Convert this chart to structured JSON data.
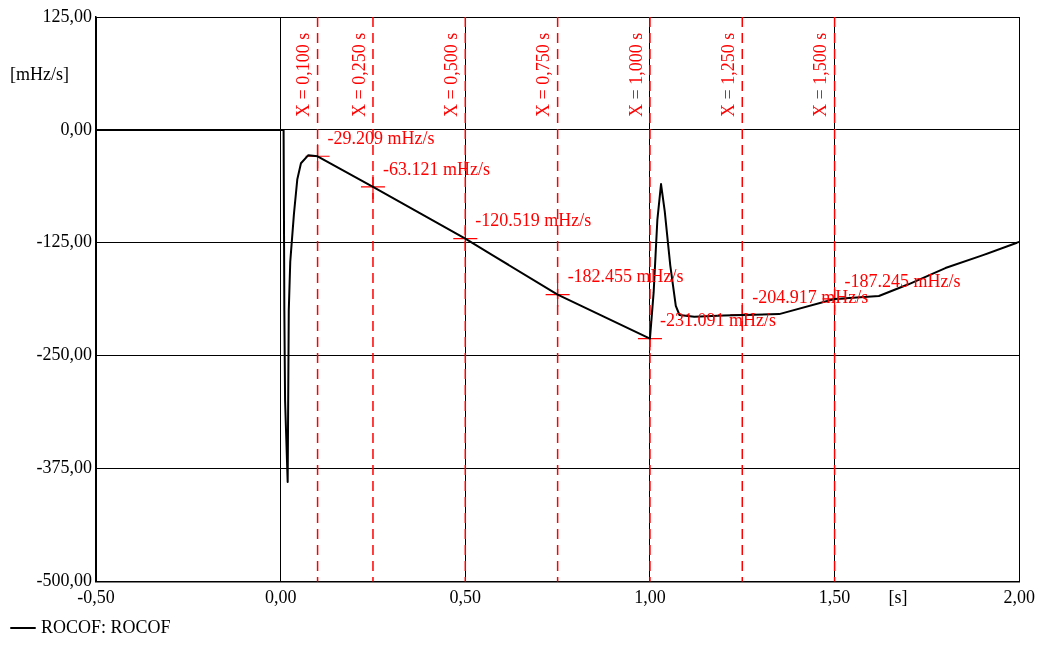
{
  "chart_data": {
    "type": "line",
    "xlabel": "[s]",
    "ylabel": "[mHz/s]",
    "x": [
      -0.5,
      0.008,
      0.01,
      0.012,
      0.019,
      0.022,
      0.026,
      0.036,
      0.045,
      0.055,
      0.075,
      0.1,
      0.25,
      0.5,
      0.75,
      1.0,
      1.01,
      1.02,
      1.03,
      1.04,
      1.055,
      1.07,
      1.08,
      1.12,
      1.2,
      1.25,
      1.35,
      1.5,
      1.62,
      1.7,
      1.8,
      1.9,
      2.0
    ],
    "series": [
      {
        "name": "ROCOF: ROCOF",
        "color": "#000000",
        "values": [
          0,
          0,
          -200,
          -300,
          -390,
          -200,
          -146,
          -93,
          -55,
          -37,
          -28,
          -29.209,
          -63.121,
          -120.519,
          -182.455,
          -231.091,
          -180,
          -100,
          -60,
          -90,
          -150,
          -195,
          -205,
          -207,
          -205.5,
          -204.917,
          -204,
          -187.245,
          -184,
          -171,
          -153,
          -139,
          -124
        ]
      }
    ],
    "xlim": [
      -0.5,
      2.0
    ],
    "xticks": [
      {
        "value": -0.5,
        "label": "-0,50"
      },
      {
        "value": 0,
        "label": "0,00"
      },
      {
        "value": 0.5,
        "label": "0,50"
      },
      {
        "value": 1,
        "label": "1,00"
      },
      {
        "value": 1.5,
        "label": "1,50"
      },
      {
        "value": 2,
        "label": "2,00"
      }
    ],
    "ylim": [
      -500,
      125
    ],
    "yticks": [
      {
        "value": -500,
        "label": "-500,00"
      },
      {
        "value": -375,
        "label": "-375,00"
      },
      {
        "value": -250,
        "label": "-250,00"
      },
      {
        "value": -125,
        "label": "-125,00"
      },
      {
        "value": 0,
        "label": "0,00"
      },
      {
        "value": 125,
        "label": "125,00"
      }
    ],
    "grid": true,
    "legend": "bottom left",
    "marker": "none",
    "line_style": "solid",
    "ref_lines": [
      {
        "axis": "x",
        "value": 0.1,
        "label": "X = 0,100 s",
        "color": "#ff0000",
        "line_style": "dashed"
      },
      {
        "axis": "x",
        "value": 0.25,
        "label": "X = 0,250 s",
        "color": "#ff0000",
        "line_style": "dashed"
      },
      {
        "axis": "x",
        "value": 0.5,
        "label": "X = 0,500 s",
        "color": "#ff0000",
        "line_style": "dashed"
      },
      {
        "axis": "x",
        "value": 0.75,
        "label": "X = 0,750 s",
        "color": "#ff0000",
        "line_style": "dashed"
      },
      {
        "axis": "x",
        "value": 1.0,
        "label": "X = 1,000 s",
        "color": "#ff0000",
        "line_style": "dashed"
      },
      {
        "axis": "x",
        "value": 1.25,
        "label": "X = 1,250 s",
        "color": "#ff0000",
        "line_style": "dashed"
      },
      {
        "axis": "x",
        "value": 1.5,
        "label": "X = 1,500 s",
        "color": "#ff0000",
        "line_style": "dashed"
      }
    ],
    "annotations": [
      {
        "text": "-29.209 mHz/s",
        "x": 0.1,
        "y": -29.209
      },
      {
        "text": "-63.121 mHz/s",
        "x": 0.25,
        "y": -63.121
      },
      {
        "text": "-120.519 mHz/s",
        "x": 0.5,
        "y": -120.519
      },
      {
        "text": "-182.455 mHz/s",
        "x": 0.75,
        "y": -182.455
      },
      {
        "text": "-231.091 mHz/s",
        "x": 1.0,
        "y": -231.091
      },
      {
        "text": "-204.917 mHz/s",
        "x": 1.25,
        "y": -204.917
      },
      {
        "text": "-187.245 mHz/s",
        "x": 1.5,
        "y": -187.245
      }
    ]
  }
}
